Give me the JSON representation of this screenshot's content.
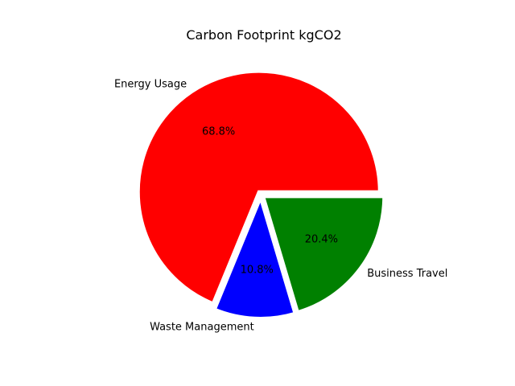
{
  "chart_data": {
    "type": "pie",
    "title": "Carbon Footprint kgCO2",
    "slices": [
      {
        "label": "Energy Usage",
        "value": 68.8,
        "pct_label": "68.8%",
        "color": "#ff0000"
      },
      {
        "label": "Waste Management",
        "value": 10.8,
        "pct_label": "10.8%",
        "color": "#0000ff"
      },
      {
        "label": "Business Travel",
        "value": 20.4,
        "pct_label": "20.4%",
        "color": "#008000"
      }
    ],
    "start_angle_deg": 0,
    "direction": "counterclockwise",
    "exploded": true,
    "legend": "none"
  }
}
